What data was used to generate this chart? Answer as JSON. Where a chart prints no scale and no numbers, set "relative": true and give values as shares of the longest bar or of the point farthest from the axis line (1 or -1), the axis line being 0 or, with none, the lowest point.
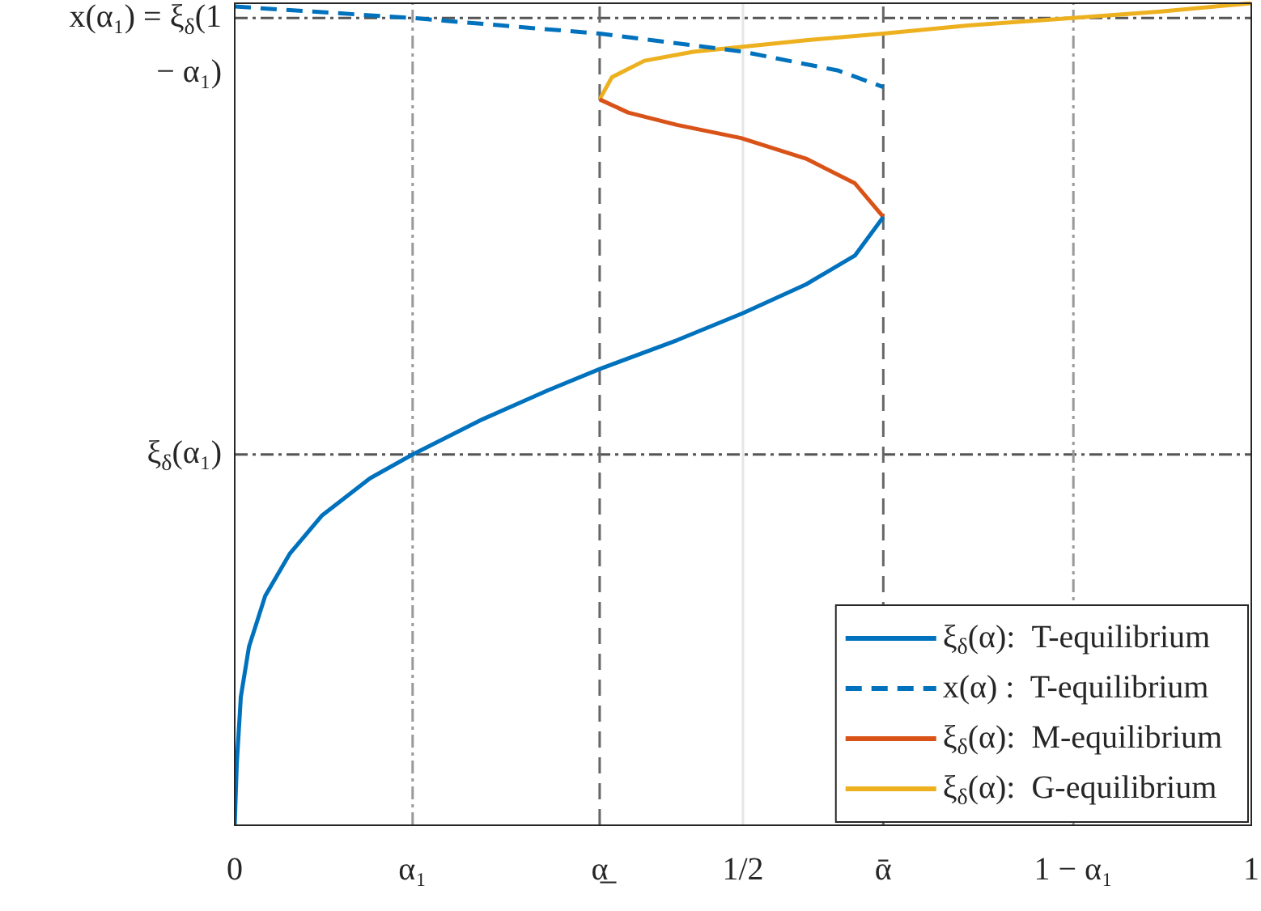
{
  "chart_data": {
    "type": "line",
    "relative": true,
    "xlim": [
      0,
      1
    ],
    "xticks": [
      0,
      {
        "value": 0.175,
        "label": "α₁"
      },
      {
        "value": 0.359,
        "label": "α̲"
      },
      {
        "value": 0.5,
        "label": "1/2"
      },
      {
        "value": 0.638,
        "label": "ᾱ"
      },
      {
        "value": 0.825,
        "label": "1 − α₁"
      },
      1
    ],
    "series": [
      {
        "name": "ξ$_{δ}$(α):  T-equilibrium",
        "color": "#0072bd",
        "line_style": "solid",
        "x": [
          0,
          0.002,
          0.006,
          0.014,
          0.03,
          0.054,
          0.086,
          0.133,
          0.175,
          0.244,
          0.308,
          0.359,
          0.435,
          0.5,
          0.562,
          0.61,
          0.638
        ],
        "values": [
          0,
          0.074,
          0.156,
          0.217,
          0.279,
          0.33,
          0.377,
          0.422,
          0.451,
          0.494,
          0.529,
          0.555,
          0.59,
          0.623,
          0.658,
          0.693,
          0.74
        ]
      },
      {
        "name": "x(α) :  T-equilibrium",
        "color": "#0072bd",
        "line_style": "dashed",
        "x": [
          0,
          0.175,
          0.359,
          0.5,
          0.594,
          0.638
        ],
        "values": [
          0.996,
          0.982,
          0.963,
          0.941,
          0.918,
          0.898
        ]
      },
      {
        "name": "ξ$_{δ}$(α):  M-equilibrium",
        "color": "#d95319",
        "line_style": "solid",
        "x": [
          0.638,
          0.61,
          0.562,
          0.498,
          0.435,
          0.387,
          0.359
        ],
        "values": [
          0.74,
          0.781,
          0.811,
          0.836,
          0.852,
          0.867,
          0.883
        ]
      },
      {
        "name": "ξ$_{δ}$(α):  G-equilibrium",
        "color": "#edb120",
        "line_style": "solid",
        "x": [
          0.359,
          0.371,
          0.403,
          0.451,
          0.5,
          0.562,
          0.638,
          0.721,
          0.824,
          0.911,
          1
        ],
        "values": [
          0.883,
          0.91,
          0.93,
          0.941,
          0.947,
          0.955,
          0.963,
          0.973,
          0.982,
          0.99,
          1
        ]
      }
    ],
    "ref_lines": [
      {
        "axis": "y",
        "value": 0.982,
        "label": "x(α₁) = ξ$_{δ}$(1 − α₁)",
        "color": "#555555",
        "line_style": "dotted"
      },
      {
        "axis": "y",
        "value": 0.451,
        "label": "ξ$_{δ}$(α₁)",
        "color": "#555555",
        "line_style": "dotted"
      },
      {
        "axis": "x",
        "value": 0.175,
        "color": "#999999",
        "line_style": "dotted"
      },
      {
        "axis": "x",
        "value": 0.359,
        "color": "#666666",
        "line_style": "dashed"
      },
      {
        "axis": "x",
        "value": 0.5,
        "color": "#e6e6e6",
        "line_style": "solid"
      },
      {
        "axis": "x",
        "value": 0.638,
        "color": "#666666",
        "line_style": "dashed"
      },
      {
        "axis": "x",
        "value": 0.825,
        "color": "#999999",
        "line_style": "dotted"
      }
    ],
    "legend": "bottom right"
  }
}
